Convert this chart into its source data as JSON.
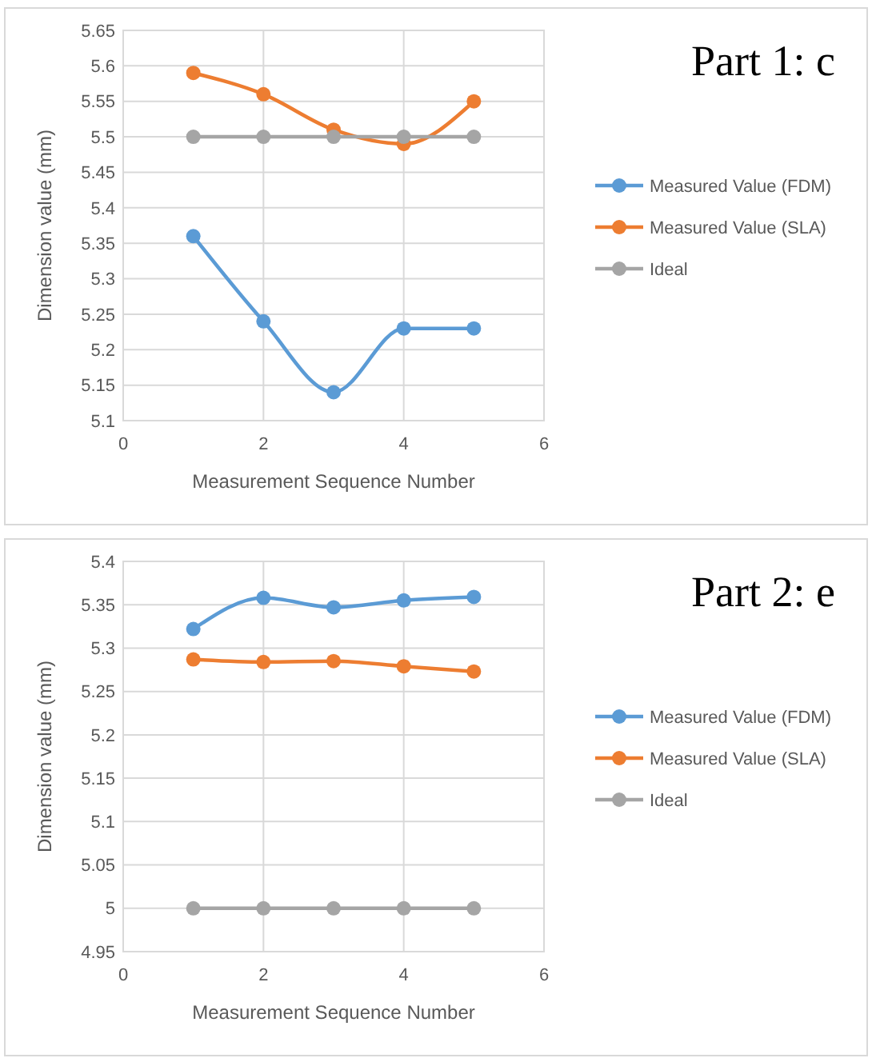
{
  "chart_data": [
    {
      "type": "line",
      "annotations": [
        "Part 1: c"
      ],
      "xlabel": "Measurement Sequence Number",
      "ylabel": "Dimension value (mm)",
      "x": [
        1,
        2,
        3,
        4,
        5
      ],
      "xlim": [
        0,
        6
      ],
      "xticks": [
        0,
        2,
        4,
        6
      ],
      "ylim": [
        5.1,
        5.65
      ],
      "yticks": [
        5.1,
        5.15,
        5.2,
        5.25,
        5.3,
        5.35,
        5.4,
        5.45,
        5.5,
        5.55,
        5.6,
        5.65
      ],
      "grid": true,
      "legend": "right",
      "marker": "circle",
      "series": [
        {
          "name": "Measured Value (FDM)",
          "color": "#5b9bd5",
          "values": [
            5.36,
            5.24,
            5.14,
            5.23,
            5.23
          ]
        },
        {
          "name": "Measured Value (SLA)",
          "color": "#ed7d31",
          "values": [
            5.59,
            5.56,
            5.51,
            5.49,
            5.55
          ]
        },
        {
          "name": "Ideal",
          "color": "#a5a5a5",
          "values": [
            5.5,
            5.5,
            5.5,
            5.5,
            5.5
          ]
        }
      ]
    },
    {
      "type": "line",
      "annotations": [
        "Part 2: e"
      ],
      "xlabel": "Measurement Sequence Number",
      "ylabel": "Dimension value (mm)",
      "x": [
        1,
        2,
        3,
        4,
        5
      ],
      "xlim": [
        0,
        6
      ],
      "xticks": [
        0,
        2,
        4,
        6
      ],
      "ylim": [
        4.95,
        5.4
      ],
      "yticks": [
        4.95,
        5,
        5.05,
        5.1,
        5.15,
        5.2,
        5.25,
        5.3,
        5.35,
        5.4
      ],
      "grid": true,
      "legend": "right",
      "marker": "circle",
      "series": [
        {
          "name": "Measured Value (FDM)",
          "color": "#5b9bd5",
          "values": [
            5.322,
            5.358,
            5.347,
            5.355,
            5.359
          ]
        },
        {
          "name": "Measured Value (SLA)",
          "color": "#ed7d31",
          "values": [
            5.287,
            5.284,
            5.285,
            5.279,
            5.273
          ]
        },
        {
          "name": "Ideal",
          "color": "#a5a5a5",
          "values": [
            5,
            5,
            5,
            5,
            5
          ]
        }
      ]
    }
  ]
}
